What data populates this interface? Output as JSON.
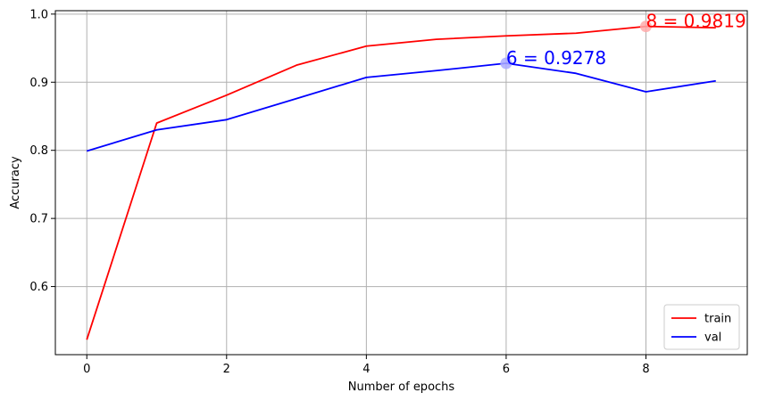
{
  "chart_data": {
    "type": "line",
    "title": "",
    "xlabel": "Number of epochs",
    "ylabel": "Accuracy",
    "x": [
      0,
      1,
      2,
      3,
      4,
      5,
      6,
      7,
      8,
      9
    ],
    "xlim": [
      -0.45,
      9.45
    ],
    "ylim": [
      0.5,
      1.005
    ],
    "xticks": [
      0,
      2,
      4,
      6,
      8
    ],
    "xtick_labels": [
      "0",
      "2",
      "4",
      "6",
      "8"
    ],
    "yticks": [
      0.6,
      0.7,
      0.8,
      0.9,
      1.0
    ],
    "ytick_labels": [
      "0.6",
      "0.7",
      "0.8",
      "0.9",
      "1.0"
    ],
    "grid": true,
    "legend_position": "bottom-right",
    "series": [
      {
        "name": "train",
        "color": "#ff0000",
        "values": [
          0.522,
          0.84,
          0.881,
          0.925,
          0.953,
          0.963,
          0.968,
          0.972,
          0.9819,
          0.98
        ]
      },
      {
        "name": "val",
        "color": "#0000ff",
        "values": [
          0.799,
          0.83,
          0.845,
          0.876,
          0.907,
          0.917,
          0.9278,
          0.913,
          0.886,
          0.902
        ]
      }
    ],
    "annotations": [
      {
        "series": 0,
        "x": 8,
        "y": 0.9819,
        "text": "8 = 0.9819",
        "color": "#ff0000",
        "marker_color": "#ffaaaa"
      },
      {
        "series": 1,
        "x": 6,
        "y": 0.9278,
        "text": "6 = 0.9278",
        "color": "#0000ff",
        "marker_color": "#aaaaff"
      }
    ]
  }
}
